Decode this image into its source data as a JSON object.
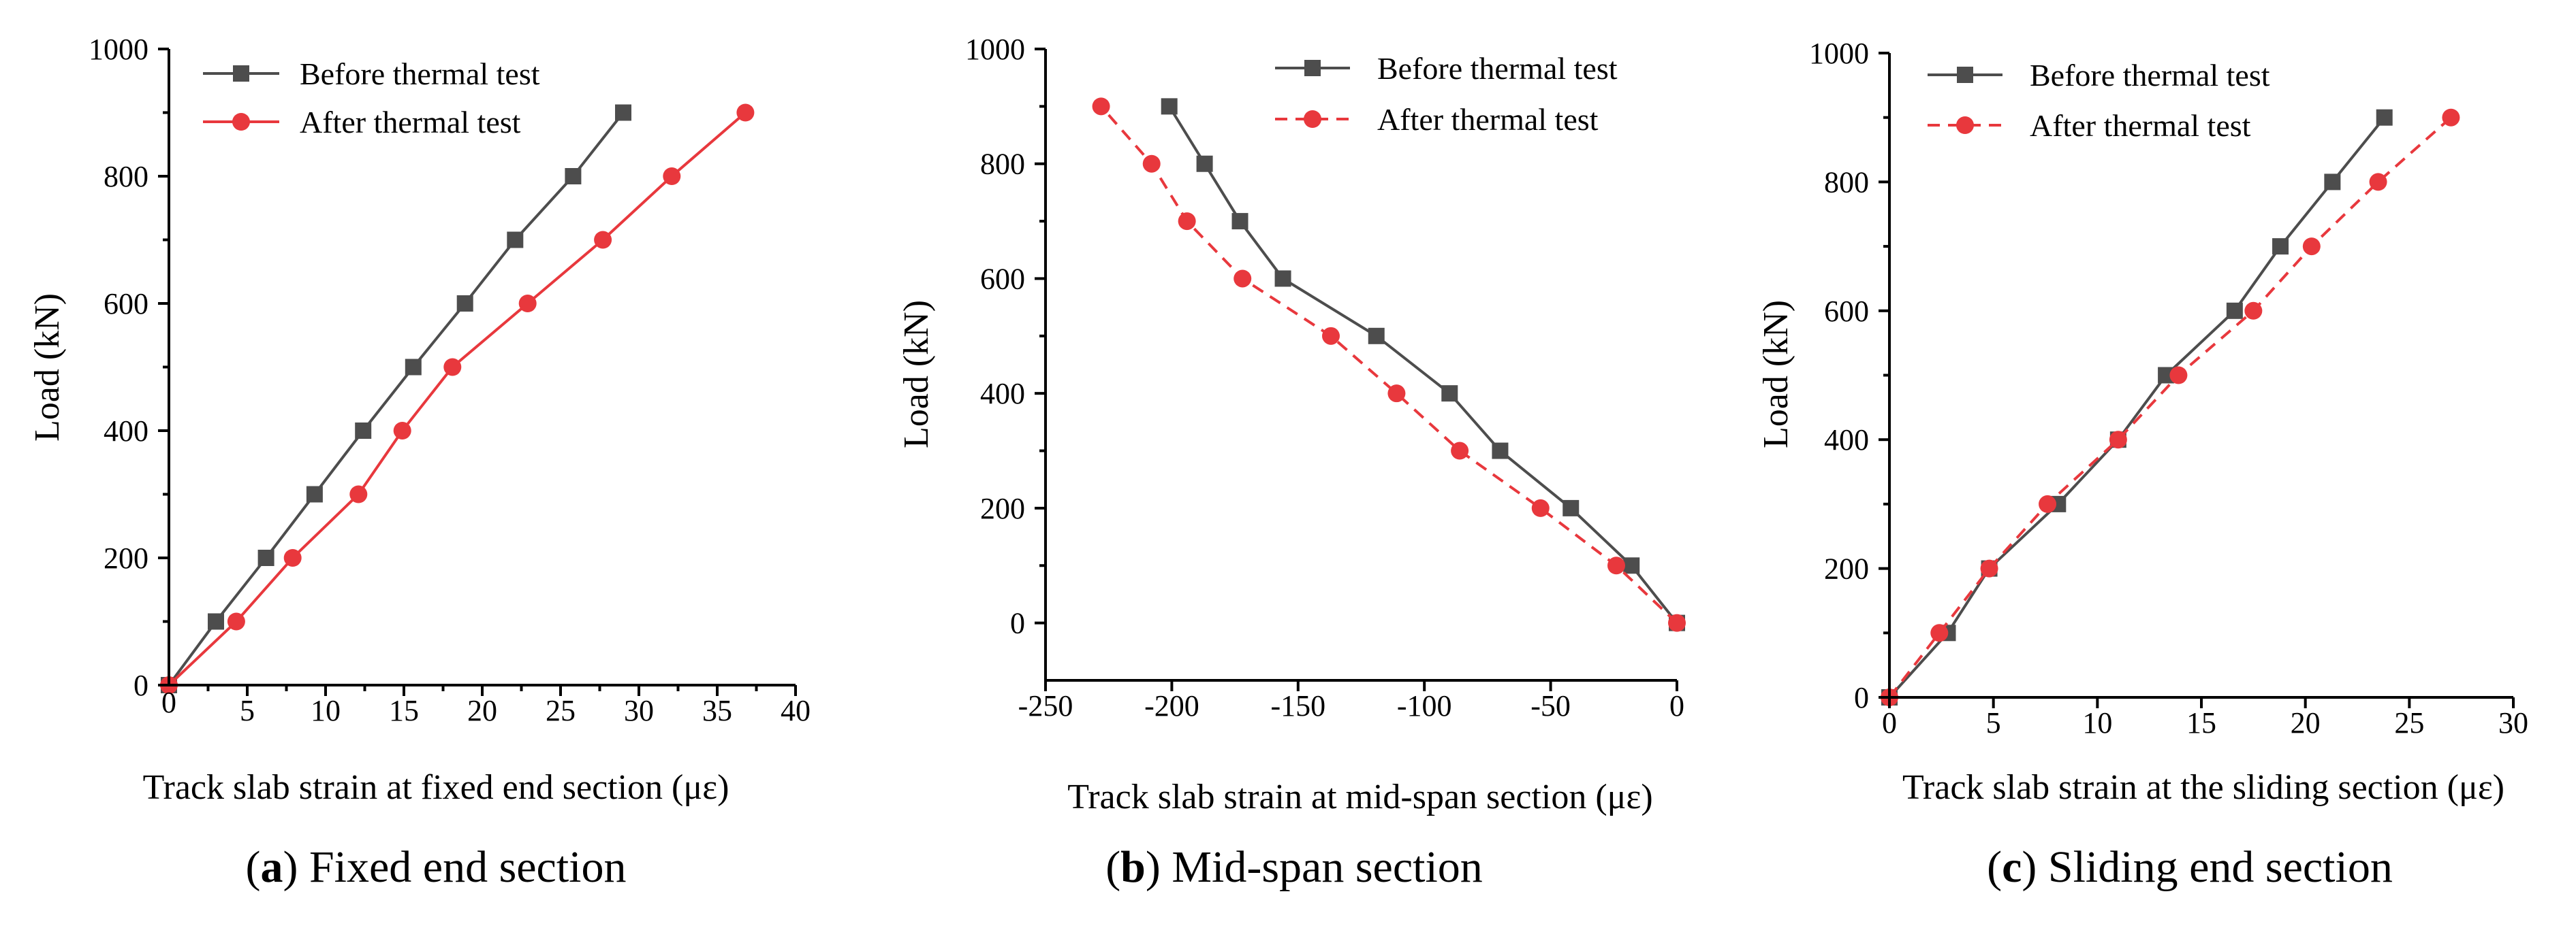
{
  "figure": {
    "panels": [
      {
        "caption_letter": "a",
        "caption_text": " Fixed end section"
      },
      {
        "caption_letter": "b",
        "caption_text": " Mid-span section"
      },
      {
        "caption_letter": "c",
        "caption_text": " Sliding end section"
      }
    ]
  },
  "colors": {
    "before": "#4d4d4d",
    "after": "#e8383d"
  },
  "chart_data": [
    {
      "type": "line",
      "title": "",
      "xlabel": "Track slab strain at fixed end section (με)",
      "ylabel": "Load (kN)",
      "xlim": [
        0,
        40
      ],
      "ylim": [
        0,
        1000
      ],
      "xticks": [
        5,
        10,
        15,
        20,
        25,
        30,
        35,
        40
      ],
      "xtick_labels": [
        "5",
        "10",
        "15",
        "20",
        "25",
        "30",
        "35",
        "40"
      ],
      "yticks": [
        0,
        200,
        400,
        600,
        800,
        1000
      ],
      "ytick_labels": [
        "0",
        "200",
        "400",
        "600",
        "800",
        "1000"
      ],
      "x_origin_label": "0",
      "legend_position": "top-left",
      "series": [
        {
          "name": "Before thermal test",
          "marker": "square",
          "linestyle": "solid",
          "color": "#4d4d4d",
          "x": [
            0,
            3.0,
            6.2,
            9.3,
            12.4,
            15.6,
            18.9,
            22.1,
            25.8,
            29.0
          ],
          "y": [
            0,
            100,
            200,
            300,
            400,
            500,
            600,
            700,
            800,
            900
          ]
        },
        {
          "name": "After thermal test",
          "marker": "circle",
          "linestyle": "solid",
          "color": "#e8383d",
          "x": [
            0,
            4.3,
            7.9,
            12.1,
            14.9,
            18.1,
            22.9,
            27.7,
            32.1,
            36.8
          ],
          "y": [
            0,
            100,
            200,
            300,
            400,
            500,
            600,
            700,
            800,
            900
          ]
        }
      ]
    },
    {
      "type": "line",
      "title": "",
      "xlabel": "Track slab strain at mid-span section (με)",
      "ylabel": "Load (kN)",
      "xlim": [
        -250,
        0
      ],
      "ylim": [
        -100,
        1000
      ],
      "xticks": [
        -250,
        -200,
        -150,
        -100,
        -50,
        0
      ],
      "xtick_labels": [
        "-250",
        "-200",
        "-150",
        "-100",
        "-50",
        "0"
      ],
      "yticks": [
        0,
        200,
        400,
        600,
        800,
        1000
      ],
      "ytick_labels": [
        "0",
        "200",
        "400",
        "600",
        "800",
        "1000"
      ],
      "legend_position": "top-right",
      "series": [
        {
          "name": "Before thermal test",
          "marker": "square",
          "linestyle": "solid",
          "color": "#4d4d4d",
          "x": [
            0,
            -18,
            -42,
            -70,
            -90,
            -119,
            -156,
            -173,
            -187,
            -201
          ],
          "y": [
            0,
            100,
            200,
            300,
            400,
            500,
            600,
            700,
            800,
            900
          ]
        },
        {
          "name": "After thermal test",
          "marker": "circle",
          "linestyle": "dashed",
          "color": "#e8383d",
          "x": [
            0,
            -24,
            -54,
            -86,
            -111,
            -137,
            -172,
            -194,
            -208,
            -228
          ],
          "y": [
            0,
            100,
            200,
            300,
            400,
            500,
            600,
            700,
            800,
            900
          ]
        }
      ]
    },
    {
      "type": "line",
      "title": "",
      "xlabel": "Track slab strain at the sliding section (με)",
      "ylabel": "Load (kN)",
      "xlim": [
        0,
        30
      ],
      "ylim": [
        0,
        1000
      ],
      "xticks": [
        0,
        5,
        10,
        15,
        20,
        25,
        30
      ],
      "xtick_labels": [
        "0",
        "5",
        "10",
        "15",
        "20",
        "25",
        "30"
      ],
      "yticks": [
        0,
        200,
        400,
        600,
        800,
        1000
      ],
      "ytick_labels": [
        "0",
        "200",
        "400",
        "600",
        "800",
        "1000"
      ],
      "legend_position": "top-left",
      "series": [
        {
          "name": "Before thermal test",
          "marker": "square",
          "linestyle": "solid",
          "color": "#4d4d4d",
          "x": [
            0,
            2.8,
            4.8,
            8.1,
            11.0,
            13.3,
            16.6,
            18.8,
            21.3,
            23.8
          ],
          "y": [
            0,
            100,
            200,
            300,
            400,
            500,
            600,
            700,
            800,
            900
          ]
        },
        {
          "name": "After thermal test",
          "marker": "circle",
          "linestyle": "dashed",
          "color": "#e8383d",
          "x": [
            0,
            2.4,
            4.8,
            7.6,
            11.0,
            13.9,
            17.5,
            20.3,
            23.5,
            27.0
          ],
          "y": [
            0,
            100,
            200,
            300,
            400,
            500,
            600,
            700,
            800,
            900
          ]
        }
      ]
    }
  ]
}
